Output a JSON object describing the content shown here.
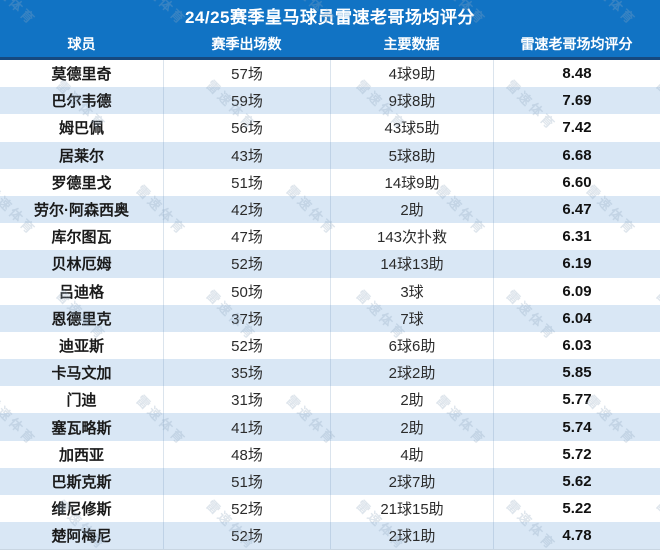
{
  "title": "24/25赛季皇马球员雷速老哥场均评分",
  "watermark": "雷速体育",
  "colors": {
    "header_blue": "#1173c4",
    "header_divider_navy": "#16497f",
    "row_alt_blue": "#d9e7f5"
  },
  "chart_data": {
    "type": "table",
    "title": "24/25赛季皇马球员雷速老哥场均评分",
    "columns": [
      "球员",
      "赛季出场数",
      "主要数据",
      "雷速老哥场均评分"
    ],
    "rows": [
      [
        "莫德里奇",
        "57场",
        "4球9助",
        "8.48"
      ],
      [
        "巴尔韦德",
        "59场",
        "9球8助",
        "7.69"
      ],
      [
        "姆巴佩",
        "56场",
        "43球5助",
        "7.42"
      ],
      [
        "居莱尔",
        "43场",
        "5球8助",
        "6.68"
      ],
      [
        "罗德里戈",
        "51场",
        "14球9助",
        "6.60"
      ],
      [
        "劳尔·阿森西奥",
        "42场",
        "2助",
        "6.47"
      ],
      [
        "库尔图瓦",
        "47场",
        "143次扑救",
        "6.31"
      ],
      [
        "贝林厄姆",
        "52场",
        "14球13助",
        "6.19"
      ],
      [
        "吕迪格",
        "50场",
        "3球",
        "6.09"
      ],
      [
        "恩德里克",
        "37场",
        "7球",
        "6.04"
      ],
      [
        "迪亚斯",
        "52场",
        "6球6助",
        "6.03"
      ],
      [
        "卡马文加",
        "35场",
        "2球2助",
        "5.85"
      ],
      [
        "门迪",
        "31场",
        "2助",
        "5.77"
      ],
      [
        "塞瓦略斯",
        "41场",
        "2助",
        "5.74"
      ],
      [
        "加西亚",
        "48场",
        "4助",
        "5.72"
      ],
      [
        "巴斯克斯",
        "51场",
        "2球7助",
        "5.62"
      ],
      [
        "维尼修斯",
        "52场",
        "21球15助",
        "5.22"
      ],
      [
        "楚阿梅尼",
        "52场",
        "2球1助",
        "4.78"
      ]
    ]
  }
}
